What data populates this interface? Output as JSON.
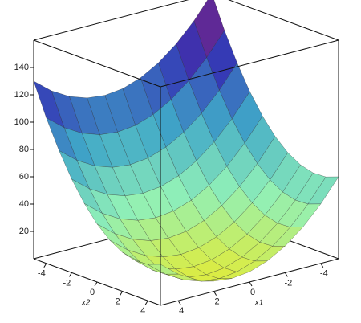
{
  "chart_data": {
    "type": "surface",
    "x1": [
      -5,
      -4,
      -3,
      -2,
      -1,
      0,
      1,
      2,
      3,
      4,
      5
    ],
    "x2": [
      -5,
      -4,
      -3,
      -2,
      -1,
      0,
      1,
      2,
      3,
      4,
      5
    ],
    "z": [
      [
        160,
        136.5,
        116,
        98.5,
        84,
        72.5,
        64,
        58.5,
        56,
        56.5,
        60
      ],
      [
        143.5,
        120,
        99.5,
        82,
        67.5,
        56,
        47.5,
        42,
        39.5,
        40,
        43.5
      ],
      [
        130,
        106.5,
        86,
        68.5,
        54,
        42.5,
        34,
        28.5,
        26,
        26.5,
        30
      ],
      [
        119.5,
        96,
        75.5,
        58,
        43.5,
        32,
        23.5,
        18,
        15.5,
        16,
        19.5
      ],
      [
        112,
        88.5,
        68,
        50.5,
        36,
        24.5,
        16,
        10.5,
        8,
        8.5,
        12
      ],
      [
        107.5,
        84,
        63.5,
        46,
        31.5,
        20,
        11.5,
        6,
        3.5,
        4,
        7.5
      ],
      [
        106,
        82.5,
        62,
        44.5,
        30,
        18.5,
        10,
        4.5,
        2,
        2.5,
        6
      ],
      [
        107.5,
        84,
        63.5,
        46,
        31.5,
        20,
        11.5,
        6,
        3.5,
        4,
        7.5
      ],
      [
        112,
        88.5,
        68,
        50.5,
        36,
        24.5,
        16,
        10.5,
        8,
        8.5,
        12
      ],
      [
        119.5,
        96,
        75.5,
        58,
        43.5,
        32,
        23.5,
        18,
        15.5,
        16,
        19.5
      ],
      [
        130,
        106.5,
        86,
        68.5,
        54,
        42.5,
        34,
        28.5,
        26,
        26.5,
        30
      ]
    ],
    "x1lim": [
      -5,
      5
    ],
    "x2lim": [
      -5,
      5
    ],
    "x1ticks": [
      -4,
      -2,
      0,
      2,
      4
    ],
    "x2ticks": [
      -4,
      -2,
      0,
      2,
      4
    ],
    "zlim": [
      0,
      160
    ],
    "zticks": [
      20,
      40,
      60,
      80,
      100,
      120,
      140
    ],
    "x1_label": "x1",
    "x2_label": "x2",
    "colormap": [
      "#e0ec3c",
      "#90f0b8",
      "#40a8c8",
      "#3434b4",
      "#8a1e78"
    ]
  }
}
